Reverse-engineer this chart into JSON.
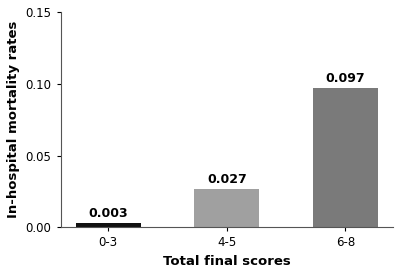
{
  "categories": [
    "0-3",
    "4-5",
    "6-8"
  ],
  "values": [
    0.003,
    0.027,
    0.097
  ],
  "bar_colors": [
    "#111111",
    "#a0a0a0",
    "#7a7a7a"
  ],
  "bar_labels": [
    "0.003",
    "0.027",
    "0.097"
  ],
  "xlabel": "Total final scores",
  "ylabel": "In-hospital mortality rates",
  "ylim": [
    0,
    0.15
  ],
  "yticks": [
    0.0,
    0.05,
    0.1,
    0.15
  ],
  "background_color": "#ffffff",
  "label_fontsize": 9.5,
  "tick_fontsize": 8.5,
  "annotation_fontsize": 9,
  "bar_width": 0.55,
  "figsize": [
    4.0,
    2.75
  ],
  "dpi": 100
}
